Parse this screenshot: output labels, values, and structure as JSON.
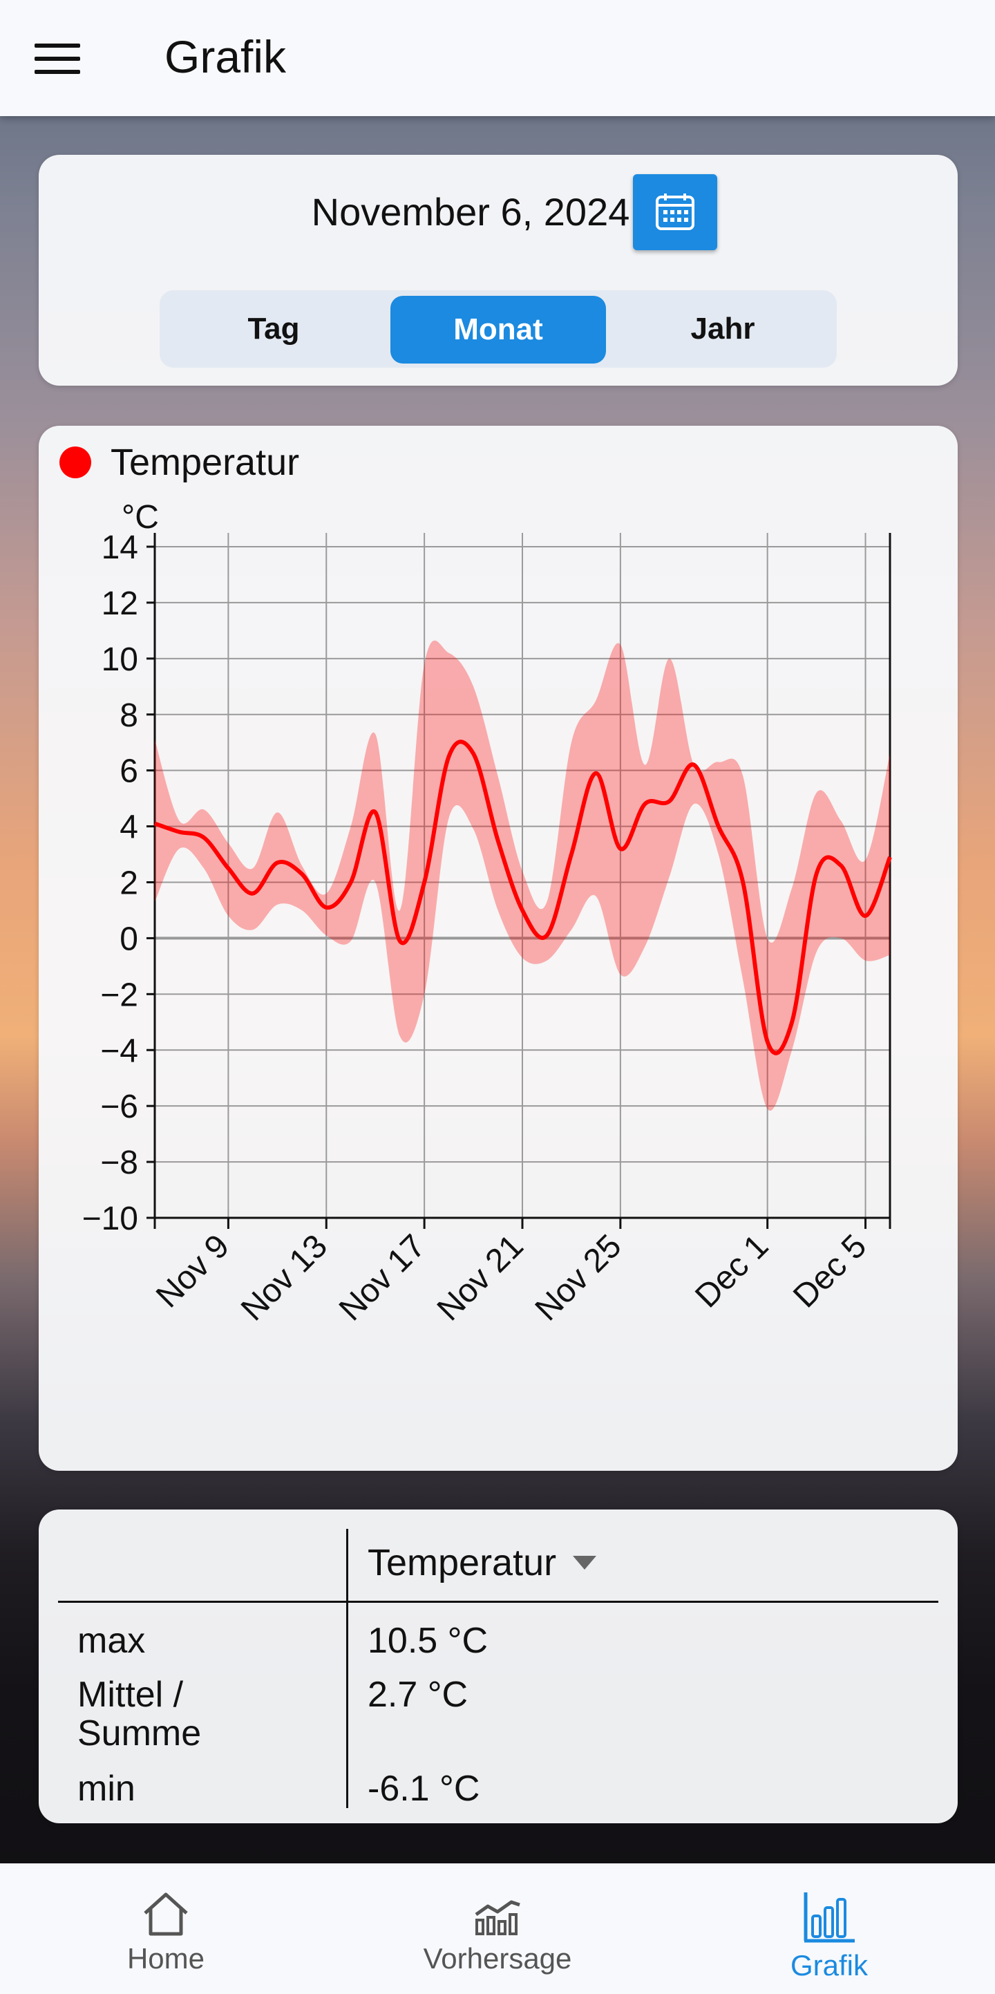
{
  "appbar": {
    "title": "Grafik",
    "menu_icon": "hamburger-menu-icon"
  },
  "date_card": {
    "date": "November 6, 2024",
    "calendar_icon": "calendar-icon",
    "segments": {
      "day": "Tag",
      "month": "Monat",
      "year": "Jahr",
      "selected": "Monat"
    },
    "accent_color": "#1b8ae0"
  },
  "chart_card": {
    "legend": "Temperatur",
    "legend_color": "#ff0000"
  },
  "chart_data": {
    "type": "line",
    "title": "",
    "ylabel": "°C",
    "xlabel": "",
    "ylim": [
      -10,
      14
    ],
    "yticks": [
      14,
      12,
      10,
      8,
      6,
      4,
      2,
      0,
      -2,
      -4,
      -6,
      -8,
      -10
    ],
    "x_tick_labels": [
      "Nov 9",
      "Nov 13",
      "Nov 17",
      "Nov 21",
      "Nov 25",
      "Dec 1",
      "Dec 5"
    ],
    "x_tick_days": [
      9,
      13,
      17,
      21,
      25,
      31,
      35
    ],
    "xlim_days": [
      6,
      36
    ],
    "grid": true,
    "series": [
      {
        "name": "Temperatur",
        "color": "#ff0000",
        "x_days": [
          6,
          7,
          8,
          9,
          10,
          11,
          12,
          13,
          14,
          15,
          16,
          17,
          18,
          19,
          20,
          21,
          22,
          23,
          24,
          25,
          26,
          27,
          28,
          29,
          30,
          31,
          32,
          33,
          34,
          35,
          36
        ],
        "values": [
          4.1,
          3.8,
          3.6,
          2.5,
          1.6,
          2.7,
          2.3,
          1.1,
          2.0,
          4.5,
          -0.1,
          2.0,
          6.5,
          6.6,
          3.5,
          1.0,
          0.1,
          3.0,
          5.9,
          3.2,
          4.8,
          4.9,
          6.2,
          4.0,
          2.0,
          -3.7,
          -3.0,
          2.3,
          2.6,
          0.8,
          2.9
        ],
        "range_min": [
          1.3,
          3.2,
          2.5,
          0.8,
          0.3,
          1.2,
          1.0,
          0.1,
          -0.1,
          2.0,
          -3.5,
          -2.0,
          4.3,
          3.9,
          1.0,
          -0.7,
          -0.8,
          0.3,
          1.5,
          -1.3,
          -0.3,
          2.2,
          4.8,
          3.0,
          -1.5,
          -6.1,
          -4.0,
          -0.5,
          0.0,
          -0.8,
          -0.6
        ],
        "range_max": [
          7.1,
          4.2,
          4.6,
          3.4,
          2.5,
          4.5,
          2.6,
          1.6,
          4.0,
          7.3,
          1.0,
          9.8,
          10.2,
          9.0,
          5.8,
          2.4,
          1.3,
          7.0,
          8.5,
          10.5,
          6.2,
          10.0,
          6.2,
          6.3,
          5.8,
          0.0,
          1.8,
          5.2,
          4.2,
          2.8,
          6.6
        ]
      }
    ]
  },
  "stats_table": {
    "column_header": "Temperatur",
    "rows": [
      {
        "label": "max",
        "value": "10.5 °C"
      },
      {
        "label_line1": "Mittel /",
        "label_line2": "Summe",
        "value": "2.7 °C"
      },
      {
        "label": "min",
        "value": "-6.1 °C"
      }
    ]
  },
  "bottom_nav": {
    "items": [
      {
        "label": "Home",
        "icon": "home-icon"
      },
      {
        "label": "Vorhersage",
        "icon": "forecast-chart-icon"
      },
      {
        "label": "Grafik",
        "icon": "bar-chart-icon",
        "active": true
      }
    ],
    "active_color": "#1b8ae0"
  }
}
